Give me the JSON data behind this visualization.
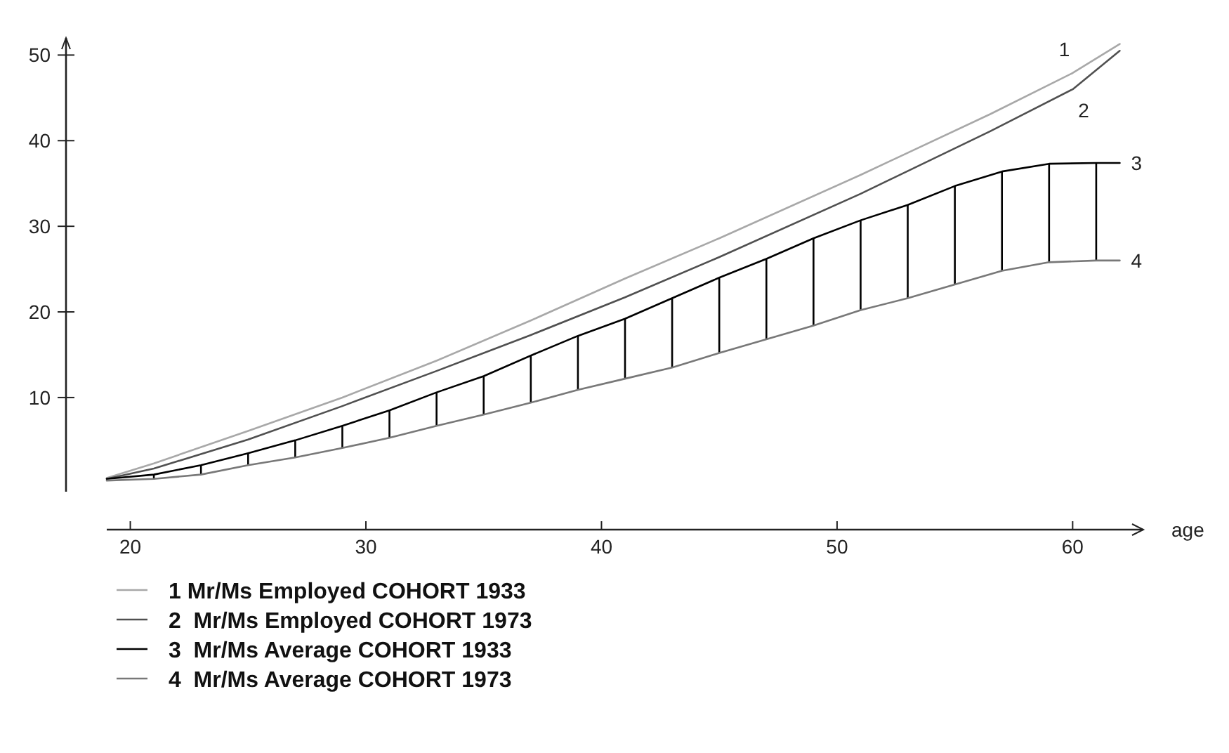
{
  "chart_data": {
    "type": "line",
    "xlabel": "age",
    "xlim": [
      19,
      63
    ],
    "xticks": [
      20,
      30,
      40,
      50,
      60
    ],
    "ylim": [
      -1,
      52
    ],
    "yticks": [
      10,
      20,
      30,
      40,
      50
    ],
    "grid": false,
    "legend": "bottom",
    "marker": "none",
    "line_style": "solid",
    "series": [
      {
        "name": "1 Mr/Ms Employed COHORT 1933",
        "color": "#a8a8a8",
        "x": [
          19,
          21,
          25,
          29,
          33,
          37,
          41,
          45,
          51,
          56.5,
          60,
          62
        ],
        "values": [
          0.6,
          2.3,
          6.1,
          10.0,
          14.3,
          19.0,
          23.9,
          28.6,
          36.0,
          43.1,
          47.9,
          51.3
        ]
      },
      {
        "name": "2  Mr/Ms Employed COHORT 1973",
        "color": "#505050",
        "x": [
          19,
          21,
          25,
          29,
          33,
          37,
          41,
          45,
          51,
          56.5,
          60,
          62
        ],
        "values": [
          0.5,
          1.7,
          5.1,
          9.0,
          13.1,
          17.3,
          21.7,
          26.4,
          33.8,
          41.1,
          46.0,
          50.5
        ]
      },
      {
        "name": "3  Mr/Ms Average COHORT 1933",
        "color": "#000000",
        "x": [
          19,
          21,
          23,
          25,
          27,
          29,
          31,
          33,
          35,
          37,
          39,
          41,
          43,
          45,
          47,
          49,
          51,
          53,
          55,
          57,
          59,
          61,
          62
        ],
        "values": [
          0.5,
          1.0,
          2.1,
          3.5,
          5.0,
          6.7,
          8.5,
          10.6,
          12.5,
          14.9,
          17.2,
          19.2,
          21.6,
          24.0,
          26.2,
          28.6,
          30.7,
          32.5,
          34.7,
          36.4,
          37.3,
          37.4,
          37.4
        ],
        "errors": [
          null,
          [
            0.5,
            1.0
          ],
          [
            1.0,
            2.1
          ],
          [
            2.1,
            3.5
          ],
          [
            3.0,
            5.0
          ],
          [
            4.1,
            6.7
          ],
          [
            5.3,
            8.5
          ],
          [
            6.7,
            10.6
          ],
          [
            8.0,
            12.5
          ],
          [
            9.4,
            14.9
          ],
          [
            10.9,
            17.2
          ],
          [
            12.2,
            19.2
          ],
          [
            13.5,
            21.6
          ],
          [
            15.2,
            24.0
          ],
          [
            16.8,
            26.2
          ],
          [
            18.4,
            28.6
          ],
          [
            20.2,
            30.7
          ],
          [
            21.6,
            32.5
          ],
          [
            23.2,
            34.7
          ],
          [
            24.8,
            36.4
          ],
          [
            25.8,
            37.3
          ],
          [
            26.0,
            37.4
          ],
          null
        ]
      },
      {
        "name": "4  Mr/Ms Average COHORT 1973",
        "color": "#787878",
        "x": [
          19,
          21,
          23,
          25,
          27,
          29,
          31,
          33,
          35,
          37,
          39,
          41,
          43,
          45,
          47,
          49,
          51,
          53,
          55,
          57,
          59,
          61,
          62
        ],
        "values": [
          0.3,
          0.5,
          1.0,
          2.1,
          3.0,
          4.1,
          5.3,
          6.7,
          8.0,
          9.4,
          10.9,
          12.2,
          13.5,
          15.2,
          16.8,
          18.4,
          20.2,
          21.6,
          23.2,
          24.8,
          25.8,
          26.0,
          26.0
        ]
      }
    ],
    "annotations": [
      "1",
      "2",
      "3",
      "4"
    ]
  }
}
